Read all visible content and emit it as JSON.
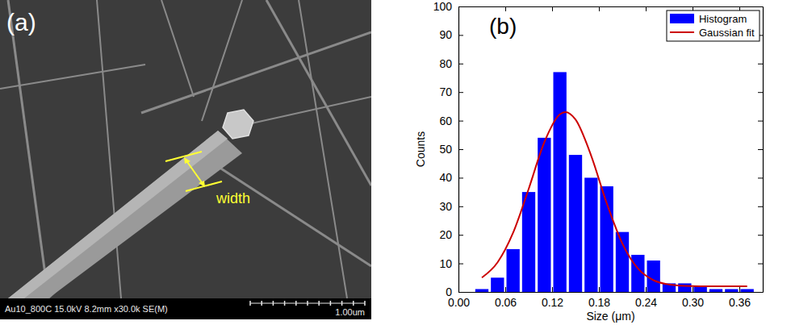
{
  "image_panel": {
    "label": "(a)",
    "annotations": [
      "width"
    ],
    "info_bar": "Au10_800C 15.0kV 8.2mm x30.0k SE(M)",
    "scale_bar": "1.00um"
  },
  "chart_data": {
    "type": "histogram",
    "annotations": [
      "(b)"
    ],
    "x_label": "Size (μm)",
    "y_label": "Counts",
    "xlim": [
      0,
      0.39
    ],
    "ylim": [
      0,
      100
    ],
    "xticks": [
      {
        "value": 0,
        "label": "0.00"
      },
      0.06,
      0.12,
      0.18,
      0.24,
      {
        "value": 0.3,
        "label": "0.30"
      },
      0.36
    ],
    "yticks": [
      0,
      10,
      20,
      30,
      40,
      50,
      60,
      70,
      80,
      90,
      100
    ],
    "grid": false,
    "legend": "upper right",
    "series": [
      {
        "name": "Histogram",
        "type": "bar",
        "color": "#0000ff",
        "bins": [
          0.02,
          0.04,
          0.06,
          0.08,
          0.1,
          0.12,
          0.14,
          0.16,
          0.18,
          0.2,
          0.22,
          0.24,
          0.26,
          0.28,
          0.3,
          0.32,
          0.34,
          0.36,
          0.38
        ],
        "values": [
          1,
          5,
          15,
          35,
          54,
          77,
          48,
          40,
          37,
          21,
          13,
          11,
          3,
          3,
          2,
          1,
          1,
          1
        ]
      },
      {
        "name": "Gaussian fit",
        "type": "line",
        "color": "#cc0000",
        "x": [
          0.03,
          0.05,
          0.07,
          0.09,
          0.11,
          0.13,
          0.137,
          0.15,
          0.17,
          0.19,
          0.21,
          0.23,
          0.25,
          0.27,
          0.29,
          0.31,
          0.33,
          0.35,
          0.37
        ],
        "values": [
          5,
          10.3,
          20.7,
          36.1,
          52.4,
          62.2,
          63,
          60.4,
          47.8,
          31.1,
          17,
          8.2,
          4.1,
          2.6,
          2.1,
          2,
          2,
          2,
          2
        ]
      }
    ]
  }
}
